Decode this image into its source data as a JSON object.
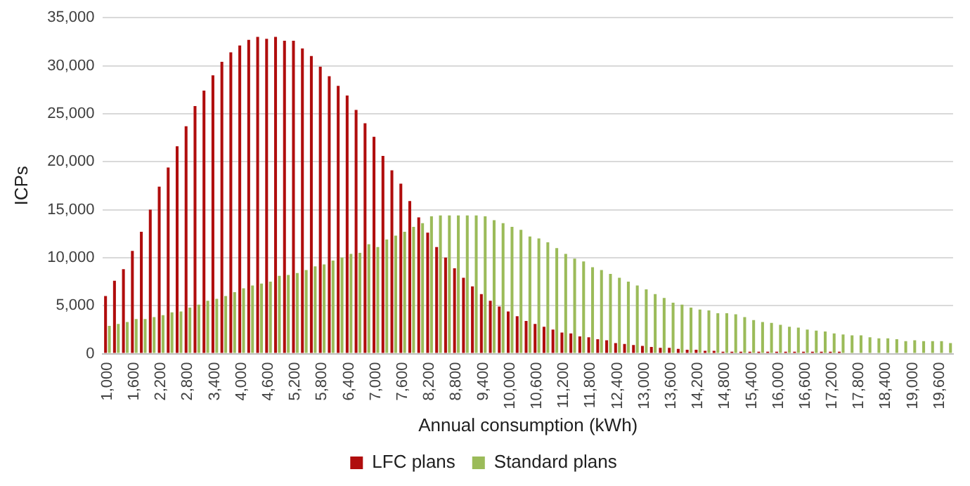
{
  "chart_data": {
    "type": "bar",
    "xlabel": "Annual consumption (kWh)",
    "ylabel": "ICPs",
    "categories": [
      "1,000",
      null,
      null,
      "1,600",
      null,
      null,
      "2,200",
      null,
      null,
      "2,800",
      null,
      null,
      "3,400",
      null,
      null,
      "4,000",
      null,
      null,
      "4,600",
      null,
      null,
      "5,200",
      null,
      null,
      "5,800",
      null,
      null,
      "6,400",
      null,
      null,
      "7,000",
      null,
      null,
      "7,600",
      null,
      null,
      "8,200",
      null,
      null,
      "8,800",
      null,
      null,
      "9,400",
      null,
      null,
      "10,000",
      null,
      null,
      "10,600",
      null,
      null,
      "11,200",
      null,
      null,
      "11,800",
      null,
      null,
      "12,400",
      null,
      null,
      "13,000",
      null,
      null,
      "13,600",
      null,
      null,
      "14,200",
      null,
      null,
      "14,800",
      null,
      null,
      "15,400",
      null,
      null,
      "16,000",
      null,
      null,
      "16,600",
      null,
      null,
      "17,200",
      null,
      null,
      "17,800",
      null,
      null,
      "18,400",
      null,
      null,
      "19,000",
      null,
      null,
      "19,600",
      null
    ],
    "series": [
      {
        "name": "LFC plans",
        "color": "#b00d0d",
        "values": [
          6000,
          7600,
          8800,
          10700,
          12700,
          15000,
          17400,
          19400,
          21600,
          23700,
          25800,
          27400,
          29000,
          30400,
          31400,
          32100,
          32700,
          33000,
          32800,
          33000,
          32600,
          32600,
          31800,
          31000,
          29900,
          28900,
          27900,
          26900,
          25400,
          24000,
          22600,
          20600,
          19100,
          17700,
          15900,
          14200,
          12600,
          11100,
          10000,
          8900,
          7900,
          7000,
          6200,
          5500,
          4900,
          4400,
          3900,
          3400,
          3100,
          2800,
          2500,
          2200,
          2100,
          1800,
          1700,
          1500,
          1400,
          1100,
          1000,
          900,
          800,
          700,
          600,
          600,
          500,
          400,
          400,
          300,
          300,
          200,
          200,
          200,
          200,
          200,
          200,
          200,
          200,
          200,
          200,
          200,
          200,
          200,
          200,
          0,
          0,
          0,
          0,
          0,
          0,
          0,
          0,
          0,
          0,
          0,
          0
        ]
      },
      {
        "name": "Standard plans",
        "color": "#9bbb59",
        "values": [
          2900,
          3100,
          3300,
          3600,
          3600,
          3800,
          4000,
          4300,
          4400,
          4800,
          5100,
          5500,
          5700,
          6000,
          6400,
          6800,
          7100,
          7300,
          7500,
          8100,
          8200,
          8400,
          8700,
          9100,
          9300,
          9700,
          10000,
          10400,
          10500,
          11400,
          11100,
          11900,
          12300,
          12700,
          13200,
          13600,
          14300,
          14400,
          14400,
          14400,
          14400,
          14400,
          14300,
          13900,
          13600,
          13200,
          12900,
          12200,
          12000,
          11600,
          11000,
          10400,
          9900,
          9600,
          9000,
          8700,
          8300,
          7900,
          7500,
          7100,
          6700,
          6200,
          5800,
          5300,
          5100,
          4800,
          4600,
          4500,
          4200,
          4200,
          4100,
          3800,
          3500,
          3300,
          3200,
          3000,
          2800,
          2700,
          2500,
          2400,
          2300,
          2100,
          2000,
          1900,
          1900,
          1700,
          1600,
          1600,
          1500,
          1300,
          1400,
          1300,
          1300,
          1300,
          1100
        ]
      }
    ],
    "ylim": [
      0,
      35000
    ],
    "yticks": [
      0,
      {
        "value": 5000,
        "label": "5,000"
      },
      {
        "value": 10000,
        "label": "10,000"
      },
      {
        "value": 15000,
        "label": "15,000"
      },
      {
        "value": 20000,
        "label": "20,000"
      },
      {
        "value": 25000,
        "label": "25,000"
      },
      {
        "value": 30000,
        "label": "30,000"
      },
      {
        "value": 35000,
        "label": "35,000"
      }
    ],
    "grid": "y",
    "legend": "bottom"
  }
}
